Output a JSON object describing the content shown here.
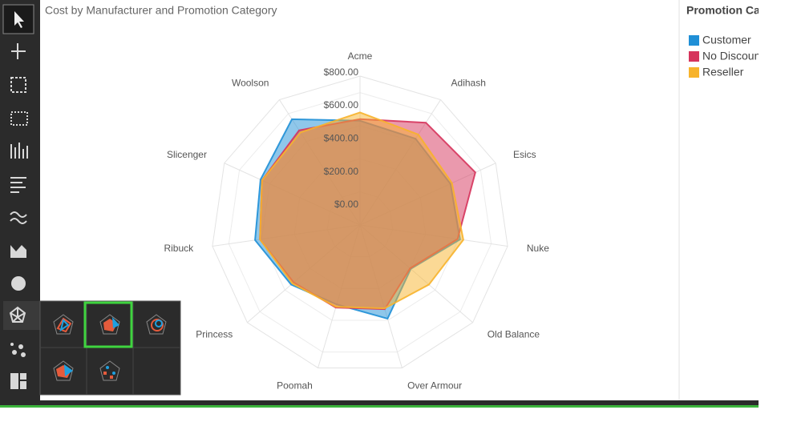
{
  "chart_data": {
    "type": "radar",
    "title": "Cost by Manufacturer and Promotion Category",
    "categories": [
      "Acme",
      "Adihash",
      "Esics",
      "Nuke",
      "Old Balance",
      "Over Armour",
      "Poomah",
      "Princess",
      "Ribuck",
      "Slicenger",
      "Woolson"
    ],
    "series": [
      {
        "name": "Customer",
        "color": "#1f8fd6",
        "values": [
          630,
          620,
          600,
          610,
          405,
          590,
          500,
          550,
          640,
          660,
          760
        ]
      },
      {
        "name": "No Discoun",
        "color": "#d6345c",
        "values": [
          640,
          735,
          765,
          595,
          400,
          530,
          520,
          530,
          610,
          650,
          680
        ]
      },
      {
        "name": "Reseller",
        "color": "#f7b32b",
        "values": [
          680,
          650,
          610,
          630,
          550,
          525,
          515,
          540,
          610,
          650,
          665
        ]
      }
    ],
    "ylim": [
      0,
      900
    ],
    "yticks": [
      {
        "value": 0,
        "label": "$0.00"
      },
      {
        "value": 200,
        "label": "$200.00"
      },
      {
        "value": 400,
        "label": "$400.00"
      },
      {
        "value": 600,
        "label": "$600.00"
      },
      {
        "value": 800,
        "label": "$800.00"
      }
    ],
    "grid": true,
    "legend_title": "Promotion Cat",
    "legend": "right"
  }
}
